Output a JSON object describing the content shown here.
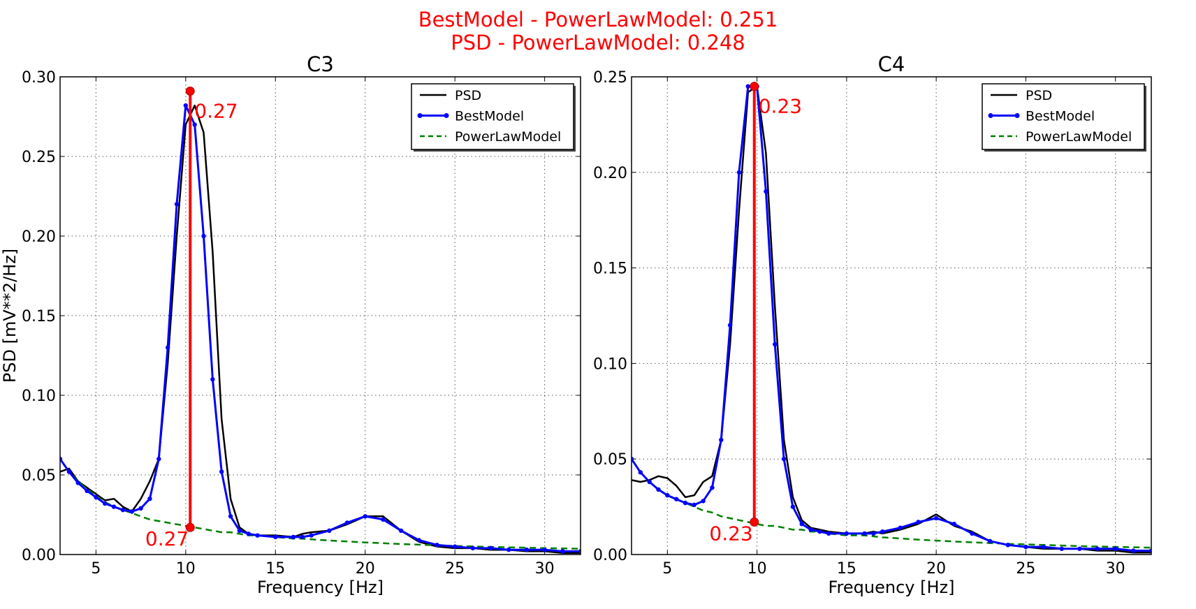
{
  "figure": {
    "suptitle_lines": [
      "BestModel - PowerLawModel: 0.251",
      "PSD - PowerLawModel: 0.248"
    ],
    "annotation_color": "#ff0000"
  },
  "chart_data": [
    {
      "type": "line",
      "title": "C3",
      "xlabel": "Frequency [Hz]",
      "ylabel": "PSD [mV**2/Hz]",
      "xlim": [
        3,
        32
      ],
      "ylim": [
        0,
        0.3
      ],
      "xticks": [
        5,
        10,
        15,
        20,
        25,
        30
      ],
      "xtick_labels": [
        "5",
        "10",
        "15",
        "20",
        "25",
        "30"
      ],
      "yticks": [
        0,
        0.05,
        0.1,
        0.15,
        0.2,
        0.25,
        0.3
      ],
      "ytick_labels": [
        "0.00",
        "0.05",
        "0.10",
        "0.15",
        "0.20",
        "0.25",
        "0.30"
      ],
      "grid": true,
      "legend_position": "top-right",
      "series": [
        {
          "name": "PSD",
          "color": "#000000",
          "style": "solid",
          "x": [
            3,
            3.5,
            4,
            4.5,
            5,
            5.5,
            6,
            6.5,
            7,
            7.5,
            8,
            8.5,
            9,
            9.5,
            10,
            10.5,
            11,
            11.5,
            12,
            12.5,
            13,
            13.5,
            14,
            15,
            16,
            16.5,
            17,
            18,
            19,
            20,
            21,
            22,
            23,
            24,
            25,
            26,
            27,
            28,
            29,
            30,
            31,
            32
          ],
          "y": [
            0.052,
            0.054,
            0.046,
            0.042,
            0.038,
            0.034,
            0.035,
            0.03,
            0.027,
            0.035,
            0.046,
            0.06,
            0.12,
            0.2,
            0.27,
            0.282,
            0.265,
            0.19,
            0.085,
            0.035,
            0.017,
            0.013,
            0.012,
            0.012,
            0.011,
            0.013,
            0.014,
            0.015,
            0.019,
            0.024,
            0.024,
            0.015,
            0.008,
            0.005,
            0.004,
            0.004,
            0.003,
            0.003,
            0.002,
            0.002,
            0.001,
            0.001
          ]
        },
        {
          "name": "BestModel",
          "color": "#0000ff",
          "style": "solid-dots",
          "x": [
            3,
            3.5,
            4,
            4.5,
            5,
            5.5,
            6,
            6.5,
            7,
            7.5,
            8,
            8.5,
            9,
            9.5,
            10,
            10.5,
            11,
            11.5,
            12,
            12.5,
            13,
            13.5,
            14,
            15,
            16,
            16.5,
            17,
            18,
            19,
            20,
            21,
            22,
            23,
            24,
            25,
            26,
            27,
            28,
            29,
            30,
            31,
            32
          ],
          "y": [
            0.06,
            0.052,
            0.045,
            0.04,
            0.036,
            0.032,
            0.03,
            0.028,
            0.027,
            0.029,
            0.035,
            0.06,
            0.13,
            0.22,
            0.282,
            0.27,
            0.2,
            0.11,
            0.052,
            0.024,
            0.015,
            0.013,
            0.012,
            0.011,
            0.011,
            0.011,
            0.012,
            0.015,
            0.02,
            0.024,
            0.022,
            0.015,
            0.009,
            0.006,
            0.005,
            0.004,
            0.004,
            0.003,
            0.003,
            0.003,
            0.002,
            0.002
          ]
        },
        {
          "name": "PowerLawModel",
          "color": "#008000",
          "style": "dashed",
          "x": [
            3,
            3.5,
            4,
            4.5,
            5,
            5.5,
            6,
            6.5,
            7,
            7.5,
            8,
            8.5,
            9,
            9.5,
            10,
            10.5,
            11,
            11.5,
            12,
            12.5,
            13,
            13.5,
            14,
            15,
            16,
            16.5,
            17,
            18,
            19,
            20,
            21,
            22,
            23,
            24,
            25,
            26,
            27,
            28,
            29,
            30,
            31,
            32
          ],
          "y": [
            0.06,
            0.052,
            0.046,
            0.041,
            0.037,
            0.033,
            0.03,
            0.028,
            0.026,
            0.024,
            0.022,
            0.021,
            0.02,
            0.019,
            0.018,
            0.017,
            0.016,
            0.015,
            0.014,
            0.014,
            0.013,
            0.012,
            0.012,
            0.011,
            0.01,
            0.01,
            0.0095,
            0.0088,
            0.0082,
            0.0076,
            0.0071,
            0.0066,
            0.0062,
            0.0058,
            0.0054,
            0.0051,
            0.0048,
            0.0045,
            0.0043,
            0.004,
            0.0038,
            0.0036
          ]
        }
      ],
      "annotations": [
        {
          "label": "0.27",
          "x": 10.25,
          "y_top": 0.291,
          "y_bottom": 0.017,
          "label_at": "top"
        },
        {
          "label": "0.27",
          "x": 10.25,
          "y_top": 0.291,
          "y_bottom": 0.017,
          "label_at": "bottom"
        }
      ]
    },
    {
      "type": "line",
      "title": "C4",
      "xlabel": "Frequency [Hz]",
      "ylabel": "",
      "xlim": [
        3,
        32
      ],
      "ylim": [
        0,
        0.25
      ],
      "xticks": [
        5,
        10,
        15,
        20,
        25,
        30
      ],
      "xtick_labels": [
        "5",
        "10",
        "15",
        "20",
        "25",
        "30"
      ],
      "yticks": [
        0,
        0.05,
        0.1,
        0.15,
        0.2,
        0.25
      ],
      "ytick_labels": [
        "0.00",
        "0.05",
        "0.10",
        "0.15",
        "0.20",
        "0.25"
      ],
      "grid": true,
      "legend_position": "top-right",
      "series": [
        {
          "name": "PSD",
          "color": "#000000",
          "style": "solid",
          "x": [
            3,
            3.5,
            4,
            4.5,
            5,
            5.5,
            6,
            6.5,
            7,
            7.5,
            8,
            8.5,
            9,
            9.5,
            10,
            10.5,
            11,
            11.5,
            12,
            12.5,
            13,
            13.5,
            14,
            15,
            16,
            16.5,
            17,
            18,
            19,
            20,
            21,
            22,
            23,
            24,
            25,
            26,
            27,
            28,
            29,
            30,
            31,
            32
          ],
          "y": [
            0.039,
            0.038,
            0.039,
            0.041,
            0.04,
            0.036,
            0.03,
            0.031,
            0.038,
            0.041,
            0.06,
            0.11,
            0.18,
            0.242,
            0.245,
            0.21,
            0.13,
            0.06,
            0.03,
            0.018,
            0.014,
            0.013,
            0.012,
            0.011,
            0.011,
            0.012,
            0.011,
            0.013,
            0.016,
            0.021,
            0.015,
            0.012,
            0.007,
            0.005,
            0.004,
            0.003,
            0.003,
            0.003,
            0.002,
            0.002,
            0.001,
            0.001
          ]
        },
        {
          "name": "BestModel",
          "color": "#0000ff",
          "style": "solid-dots",
          "x": [
            3,
            3.5,
            4,
            4.5,
            5,
            5.5,
            6,
            6.5,
            7,
            7.5,
            8,
            8.5,
            9,
            9.5,
            10,
            10.5,
            11,
            11.5,
            12,
            12.5,
            13,
            13.5,
            14,
            15,
            16,
            16.5,
            17,
            18,
            19,
            20,
            21,
            22,
            23,
            24,
            25,
            26,
            27,
            28,
            29,
            30,
            31,
            32
          ],
          "y": [
            0.05,
            0.043,
            0.038,
            0.034,
            0.031,
            0.029,
            0.027,
            0.026,
            0.028,
            0.035,
            0.06,
            0.12,
            0.2,
            0.245,
            0.245,
            0.19,
            0.11,
            0.05,
            0.025,
            0.016,
            0.013,
            0.012,
            0.011,
            0.011,
            0.011,
            0.011,
            0.012,
            0.014,
            0.017,
            0.019,
            0.016,
            0.011,
            0.007,
            0.005,
            0.004,
            0.004,
            0.003,
            0.003,
            0.003,
            0.003,
            0.002,
            0.002
          ]
        },
        {
          "name": "PowerLawModel",
          "color": "#008000",
          "style": "dashed",
          "x": [
            3,
            3.5,
            4,
            4.5,
            5,
            5.5,
            6,
            6.5,
            7,
            7.5,
            8,
            8.5,
            9,
            9.5,
            10,
            10.5,
            11,
            11.5,
            12,
            12.5,
            13,
            13.5,
            14,
            15,
            16,
            16.5,
            17,
            18,
            19,
            20,
            21,
            22,
            23,
            24,
            25,
            26,
            27,
            28,
            29,
            30,
            31,
            32
          ],
          "y": [
            0.05,
            0.043,
            0.038,
            0.034,
            0.031,
            0.029,
            0.027,
            0.025,
            0.023,
            0.022,
            0.02,
            0.019,
            0.018,
            0.017,
            0.016,
            0.015,
            0.015,
            0.014,
            0.013,
            0.013,
            0.012,
            0.012,
            0.011,
            0.01,
            0.01,
            0.0095,
            0.009,
            0.0084,
            0.0078,
            0.0073,
            0.0068,
            0.0064,
            0.006,
            0.0056,
            0.0053,
            0.005,
            0.0047,
            0.0044,
            0.0042,
            0.004,
            0.0038,
            0.0036
          ]
        }
      ],
      "annotations": [
        {
          "label": "0.23",
          "x": 9.85,
          "y_top": 0.245,
          "y_bottom": 0.017,
          "label_at": "top"
        },
        {
          "label": "0.23",
          "x": 9.85,
          "y_top": 0.245,
          "y_bottom": 0.017,
          "label_at": "bottom"
        }
      ]
    }
  ]
}
